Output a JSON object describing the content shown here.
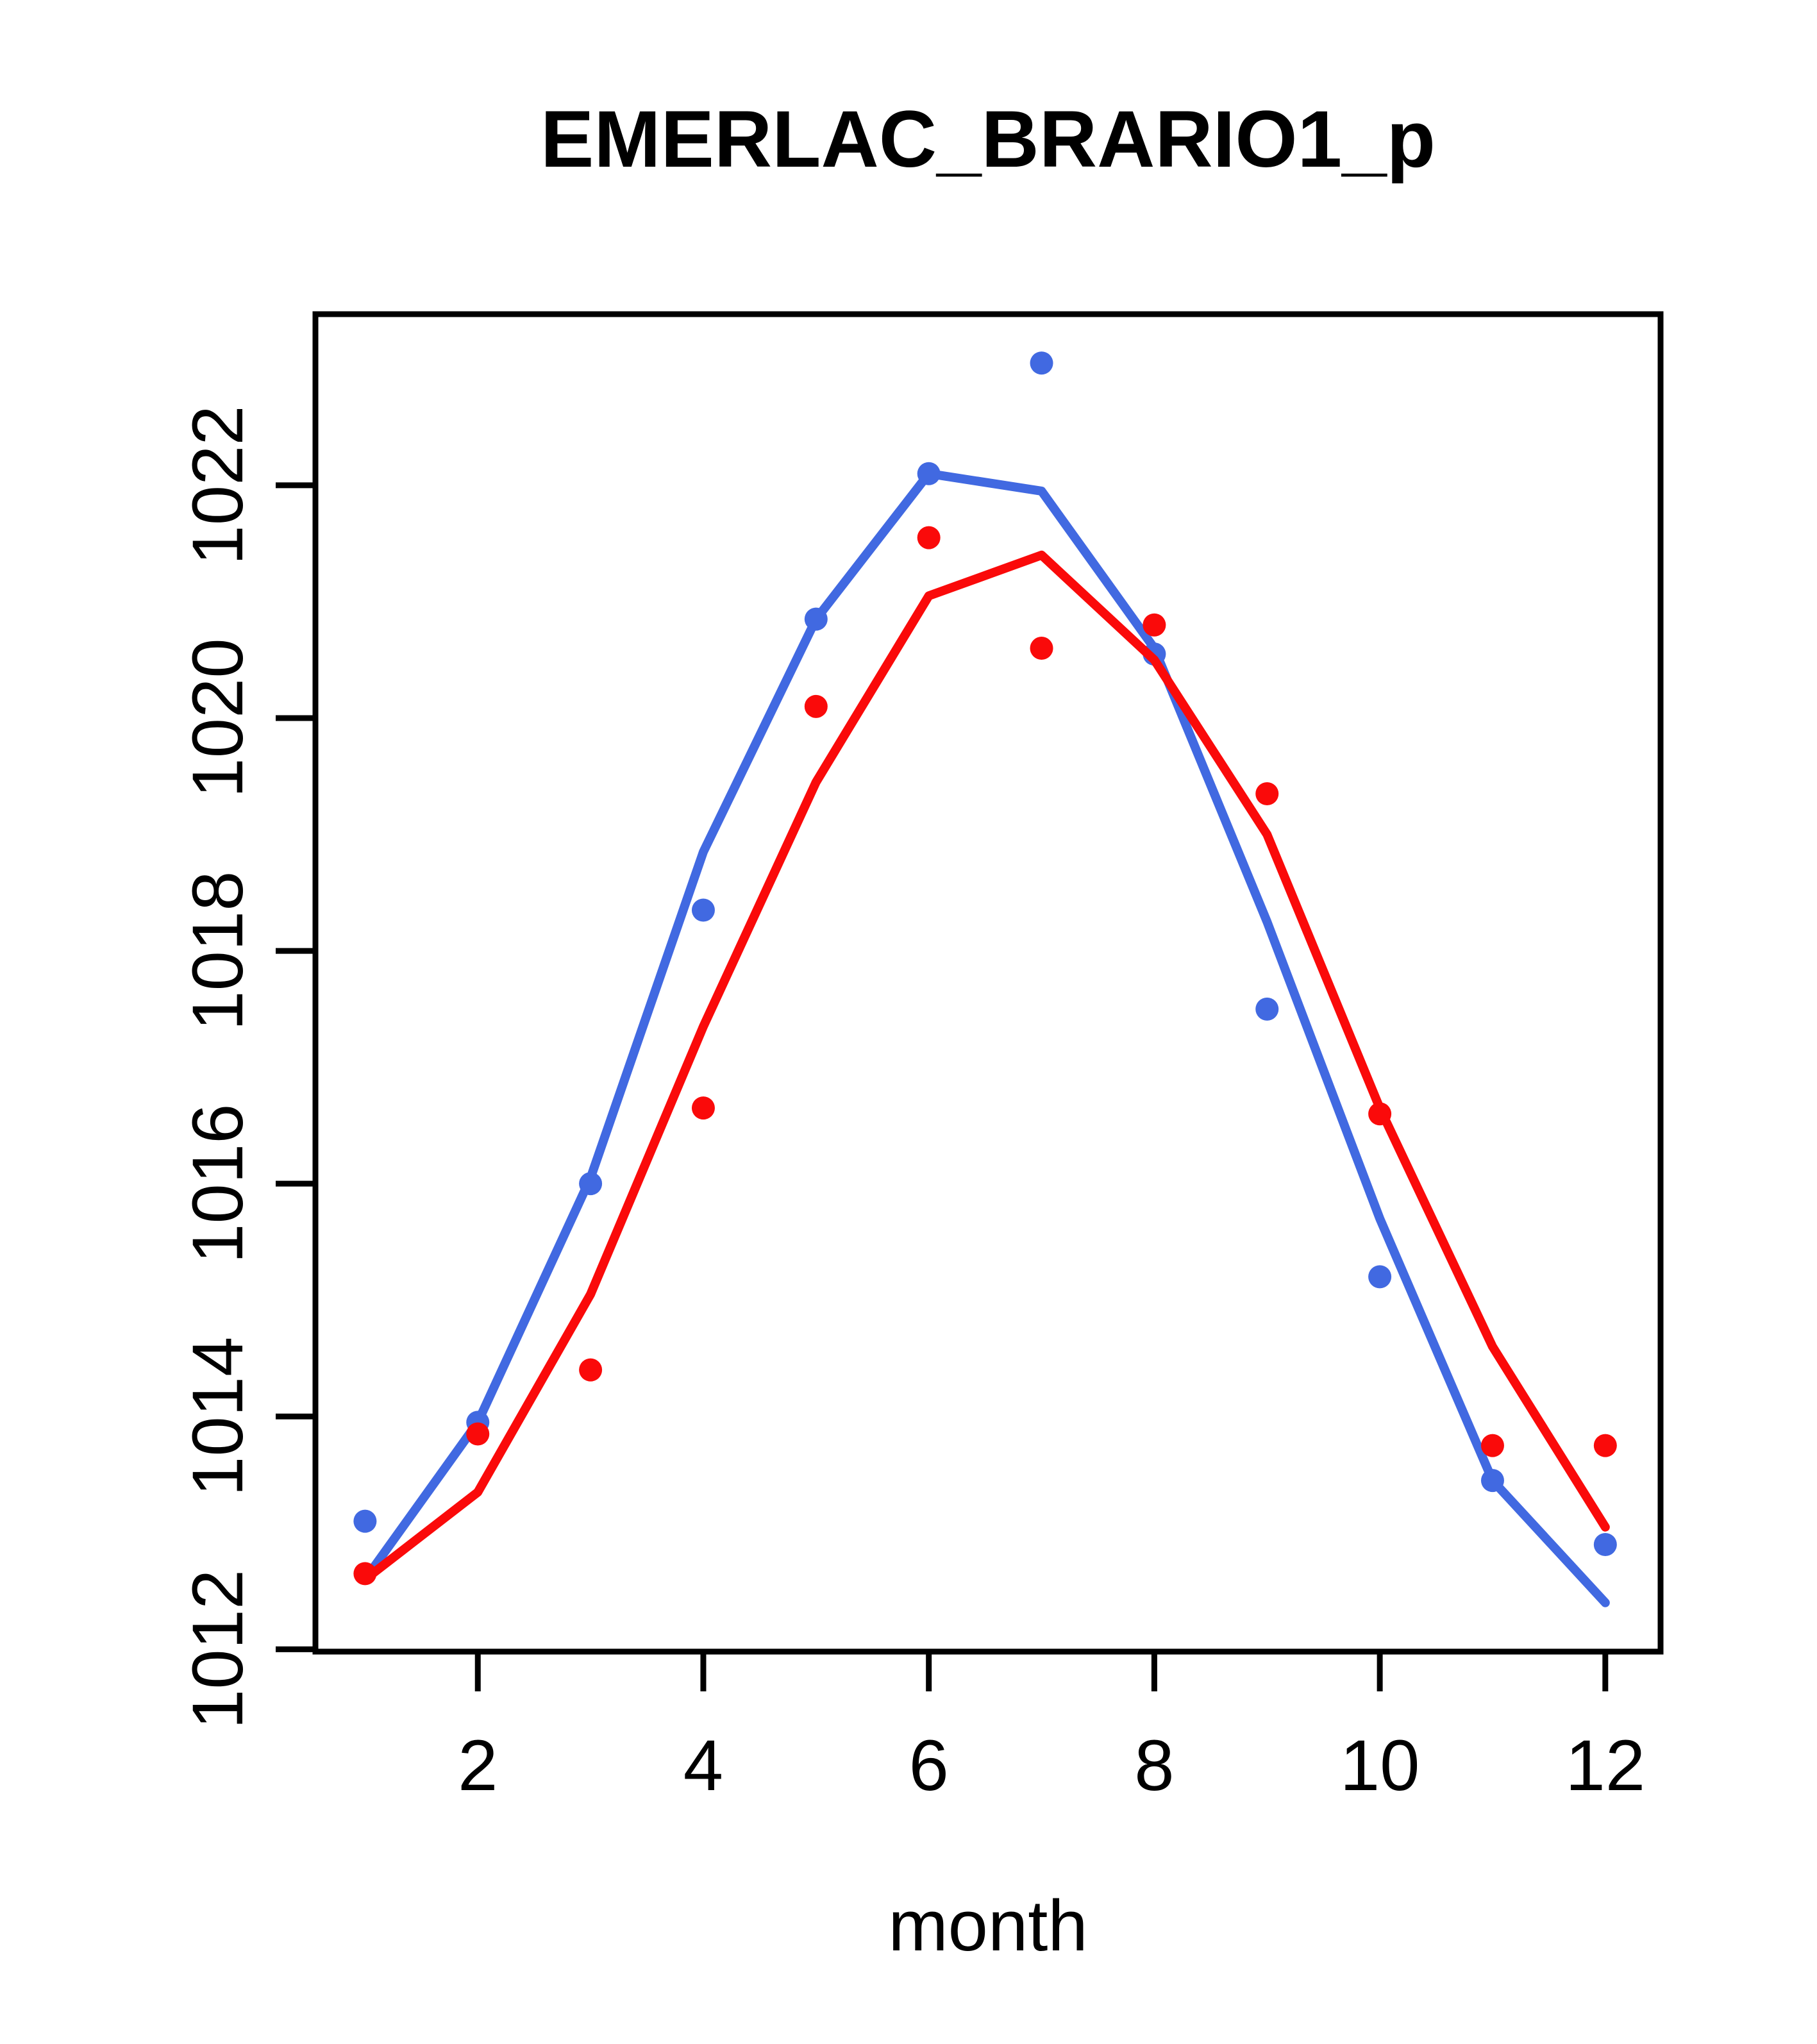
{
  "chart_data": {
    "type": "line",
    "title": "EMERLAC_BRARIO1_p",
    "xlabel": "month",
    "ylabel": "",
    "x": [
      1,
      2,
      3,
      4,
      5,
      6,
      7,
      8,
      9,
      10,
      11,
      12
    ],
    "x_ticks": [
      2,
      4,
      6,
      8,
      10,
      12
    ],
    "y_ticks": [
      1012,
      1014,
      1016,
      1018,
      1020,
      1022
    ],
    "xlim": [
      0.56,
      12.49
    ],
    "ylim": [
      1011.98,
      1023.47
    ],
    "grid": false,
    "legend_position": "none",
    "background_color": "#FFFFFF",
    "axis_color": "#000000",
    "series": [
      {
        "name": "blue-series",
        "color": "#4169E1",
        "marker": "filled-circle",
        "line_values": [
          1012.6,
          1013.95,
          1016.05,
          1018.85,
          1020.85,
          1022.1,
          1021.95,
          1020.6,
          1018.25,
          1015.7,
          1013.45,
          1012.4
        ],
        "point_values": [
          1013.1,
          1013.95,
          1016.0,
          1018.35,
          1020.85,
          1022.1,
          1023.05,
          1020.55,
          1017.5,
          1015.2,
          1013.45,
          1012.9
        ]
      },
      {
        "name": "red-series",
        "color": "#FA0A0A",
        "marker": "filled-circle",
        "line_values": [
          1012.6,
          1013.35,
          1015.05,
          1017.35,
          1019.45,
          1021.05,
          1021.4,
          1020.5,
          1019.0,
          1016.65,
          1014.6,
          1013.05
        ],
        "point_values": [
          1012.65,
          1013.85,
          1014.4,
          1016.65,
          1020.1,
          1021.55,
          1020.6,
          1020.8,
          1019.35,
          1016.6,
          1013.75,
          1013.75
        ]
      }
    ]
  }
}
